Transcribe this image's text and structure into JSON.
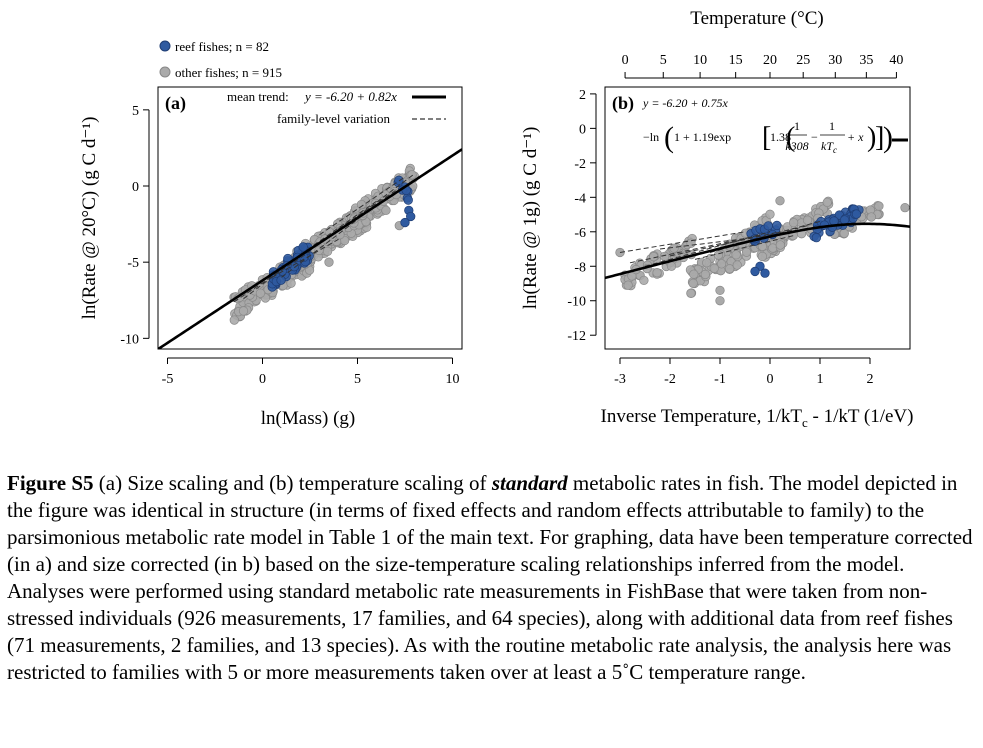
{
  "panel_a": {
    "label": "(a)",
    "legend_reef": "reef fishes; n = 82",
    "legend_other": "other fishes; n = 915",
    "trend_prefix": "mean trend:",
    "trend_eq": "y = -6.20 + 0.82x",
    "family_label": "family-level variation"
  },
  "panel_b": {
    "label": "(b)",
    "eq_line1": "y = -6.20 + 0.75x",
    "eq_ln": "−ln",
    "eq_const": "1 + 1.19exp",
    "eq_coef": "1.38",
    "eq_num1": "1",
    "eq_den1": "k308",
    "eq_num2": "1",
    "eq_den2": "kT",
    "eq_den2_sub": "c",
    "eq_tail": "+ x"
  },
  "colors": {
    "reef": "#2f5aa0",
    "reef_edge": "#1f3d73",
    "other": "#aaaaaa",
    "other_edge": "#888888"
  },
  "chart_data": [
    {
      "type": "scatter",
      "xlabel": "ln(Mass) (g)",
      "ylabel": "ln(Rate @ 20°C) (g C d⁻¹)",
      "xlim": [
        -5.5,
        10.5
      ],
      "ylim": [
        -10.7,
        6.5
      ],
      "xticks": [
        -5,
        0,
        5,
        10
      ],
      "yticks": [
        -10,
        -5,
        0,
        5
      ],
      "legend": "top-left",
      "series": [
        {
          "name": "reef fishes; n = 82",
          "clusters": [
            {
              "x": [
                0.5,
                2.5
              ],
              "y": [
                -6.1,
                -4.2
              ],
              "count": 50
            },
            {
              "x": [
                7.1,
                7.7
              ],
              "y": [
                0.2,
                -0.6
              ],
              "count": 8
            }
          ],
          "outliers": [
            [
              7.7,
              -1.6
            ],
            [
              7.8,
              -2.0
            ],
            [
              7.5,
              -2.4
            ]
          ]
        },
        {
          "name": "other fishes; n = 915",
          "clusters": [
            {
              "x": [
                -1.5,
                2.5
              ],
              "y": [
                -8.0,
                -4.8
              ],
              "count": 140
            },
            {
              "x": [
                1.8,
                5.5
              ],
              "y": [
                -4.8,
                -2.0
              ],
              "count": 170
            },
            {
              "x": [
                4.8,
                8.0
              ],
              "y": [
                -2.2,
                0.6
              ],
              "count": 120
            }
          ],
          "outliers": [
            [
              3.5,
              -5.0
            ],
            [
              6.5,
              -1.6
            ],
            [
              7.2,
              -2.6
            ],
            [
              0.3,
              -6.8
            ],
            [
              -1.0,
              -8.2
            ]
          ]
        }
      ],
      "mean_trend": {
        "intercept": -6.2,
        "slope": 0.82
      },
      "family_lines": [
        {
          "x": [
            -1.5,
            2.5
          ],
          "y": [
            -7.6,
            -4.3
          ]
        },
        {
          "x": [
            -1.0,
            3.0
          ],
          "y": [
            -7.4,
            -3.6
          ]
        },
        {
          "x": [
            0.5,
            4.0
          ],
          "y": [
            -6.0,
            -3.5
          ]
        },
        {
          "x": [
            2.0,
            6.0
          ],
          "y": [
            -4.5,
            -1.0
          ]
        },
        {
          "x": [
            3.0,
            7.5
          ],
          "y": [
            -3.2,
            0.6
          ]
        },
        {
          "x": [
            4.0,
            7.0
          ],
          "y": [
            -2.8,
            -0.3
          ]
        },
        {
          "x": [
            5.0,
            8.0
          ],
          "y": [
            -2.0,
            0.8
          ]
        },
        {
          "x": [
            1.0,
            5.0
          ],
          "y": [
            -6.0,
            -2.2
          ]
        }
      ]
    },
    {
      "type": "scatter",
      "xlabel": "Inverse Temperature, 1/kT",
      "xlabel_sub": "c",
      "xlabel_tail": " - 1/kT (1/eV)",
      "ylabel": "ln(Rate @ 1g) (g C d⁻¹)",
      "top_axis_label": "Temperature (°C)",
      "xlim": [
        -3.3,
        2.8
      ],
      "ylim": [
        -12.8,
        2.4
      ],
      "xticks": [
        -3,
        -2,
        -1,
        0,
        1,
        2
      ],
      "yticks": [
        -12,
        -10,
        -8,
        -6,
        -4,
        -2,
        0,
        2
      ],
      "top_ticks": [
        0,
        5,
        10,
        15,
        20,
        25,
        30,
        35,
        40
      ],
      "series": [
        {
          "name": "reef fishes; n = 82",
          "clusters": [
            {
              "x": [
                -0.6,
                0.2
              ],
              "y": [
                -6.6,
                -5.8
              ],
              "count": 14
            },
            {
              "x": [
                0.8,
                1.8
              ],
              "y": [
                -6.1,
                -4.9
              ],
              "count": 40
            }
          ],
          "outliers": [
            [
              -0.2,
              -8.0
            ],
            [
              -0.1,
              -8.4
            ],
            [
              -0.3,
              -8.3
            ]
          ]
        },
        {
          "name": "other fishes; n = 915",
          "clusters": [
            {
              "x": [
                -2.9,
                -1.5
              ],
              "y": [
                -8.8,
                -6.8
              ],
              "count": 60
            },
            {
              "x": [
                -1.6,
                0.0
              ],
              "y": [
                -9.0,
                -5.8
              ],
              "count": 110
            },
            {
              "x": [
                -0.2,
                1.2
              ],
              "y": [
                -7.0,
                -4.8
              ],
              "count": 90
            },
            {
              "x": [
                1.2,
                2.2
              ],
              "y": [
                -6.0,
                -4.8
              ],
              "count": 40
            }
          ],
          "outliers": [
            [
              -1.0,
              -10.0
            ],
            [
              -1.0,
              -9.4
            ],
            [
              0.2,
              -4.2
            ],
            [
              2.7,
              -4.6
            ],
            [
              -3.0,
              -7.2
            ]
          ]
        }
      ],
      "mean_trend": "y = -6.20 + 0.75x - ln(1 + 1.19exp[1.38(1/k308 - 1/kTc + x)])",
      "family_lines": [
        {
          "x": [
            -3.0,
            -0.5
          ],
          "y": [
            -7.2,
            -6.0
          ]
        },
        {
          "x": [
            -2.8,
            -0.2
          ],
          "y": [
            -7.8,
            -6.2
          ]
        },
        {
          "x": [
            -2.5,
            0.0
          ],
          "y": [
            -8.0,
            -6.0
          ]
        },
        {
          "x": [
            -2.0,
            0.2
          ],
          "y": [
            -7.4,
            -6.0
          ]
        },
        {
          "x": [
            -1.5,
            0.5
          ],
          "y": [
            -7.6,
            -6.2
          ]
        },
        {
          "x": [
            -1.2,
            0.8
          ],
          "y": [
            -7.2,
            -5.6
          ]
        },
        {
          "x": [
            -0.8,
            1.0
          ],
          "y": [
            -6.8,
            -5.4
          ]
        },
        {
          "x": [
            -2.2,
            -0.5
          ],
          "y": [
            -7.0,
            -6.4
          ]
        }
      ]
    }
  ],
  "caption": {
    "label": "Figure S5",
    "part1": " (a) Size scaling and (b) temperature scaling of ",
    "emph": "standard",
    "part2": " metabolic rates in fish. The model depicted in the figure was identical in structure (in terms of fixed effects and random effects attributable to family) to the parsimonious metabolic rate model in Table 1 of the main text. For graphing, data have been temperature corrected (in a) and size corrected (in b) based on the size-temperature scaling relationships inferred from the model. Analyses were performed using standard metabolic rate measurements in FishBase that were taken from non-stressed individuals (926 measurements, 17 families, and 64 species), along with additional data from reef fishes (71 measurements, 2 families, and 13 species). As with the routine metabolic rate analysis, the analysis here was restricted to families with 5 or more measurements taken over at least a 5˚C temperature range."
  }
}
